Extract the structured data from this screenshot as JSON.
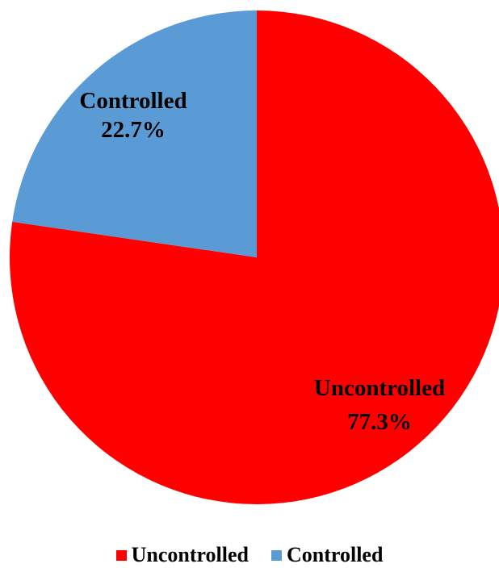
{
  "chart_data": {
    "type": "pie",
    "title": "",
    "categories": [
      "Uncontrolled",
      "Controlled"
    ],
    "values": [
      77.3,
      22.7
    ],
    "value_labels": [
      "77.3%",
      "22.7%"
    ],
    "colors": [
      "#ff0000",
      "#5b9bd5"
    ],
    "start_angle": "12 o'clock",
    "direction": "clockwise",
    "legend": {
      "position": "bottom",
      "items": [
        {
          "label": "Uncontrolled",
          "color": "#ff0000"
        },
        {
          "label": "Controlled",
          "color": "#5b9bd5"
        }
      ]
    }
  }
}
